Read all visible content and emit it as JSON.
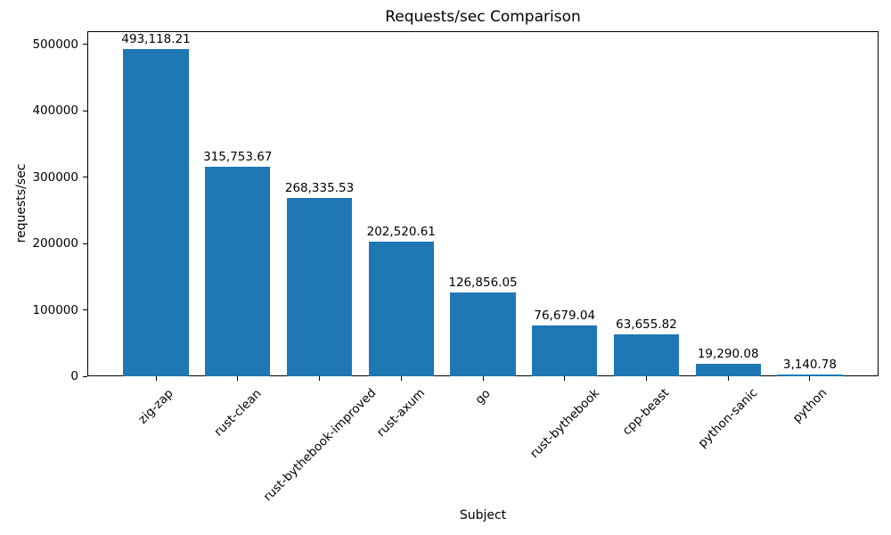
{
  "chart_data": {
    "type": "bar",
    "title": "Requests/sec Comparison",
    "xlabel": "Subject",
    "ylabel": "requests/sec",
    "categories": [
      "zig-zap",
      "rust-clean",
      "rust-bythebook-improved",
      "rust-axum",
      "go",
      "rust-bythebook",
      "cpp-beast",
      "python-sanic",
      "python"
    ],
    "values": [
      493118.21,
      315753.67,
      268335.53,
      202520.61,
      126856.05,
      76679.04,
      63655.82,
      19290.08,
      3140.78
    ],
    "value_labels": [
      "493,118.21",
      "315,753.67",
      "268,335.53",
      "202,520.61",
      "126,856.05",
      "76,679.04",
      "63,655.82",
      "19,290.08",
      "3,140.78"
    ],
    "yticks": [
      0,
      100000,
      200000,
      300000,
      400000,
      500000
    ],
    "ytick_labels": [
      "0",
      "100000",
      "200000",
      "300000",
      "400000",
      "500000"
    ],
    "ylim": [
      0,
      520161
    ],
    "bar_color": "#1f77b4",
    "text_color": "#000000",
    "grid": false,
    "legend": null,
    "x_label_rotation_deg": 45
  }
}
